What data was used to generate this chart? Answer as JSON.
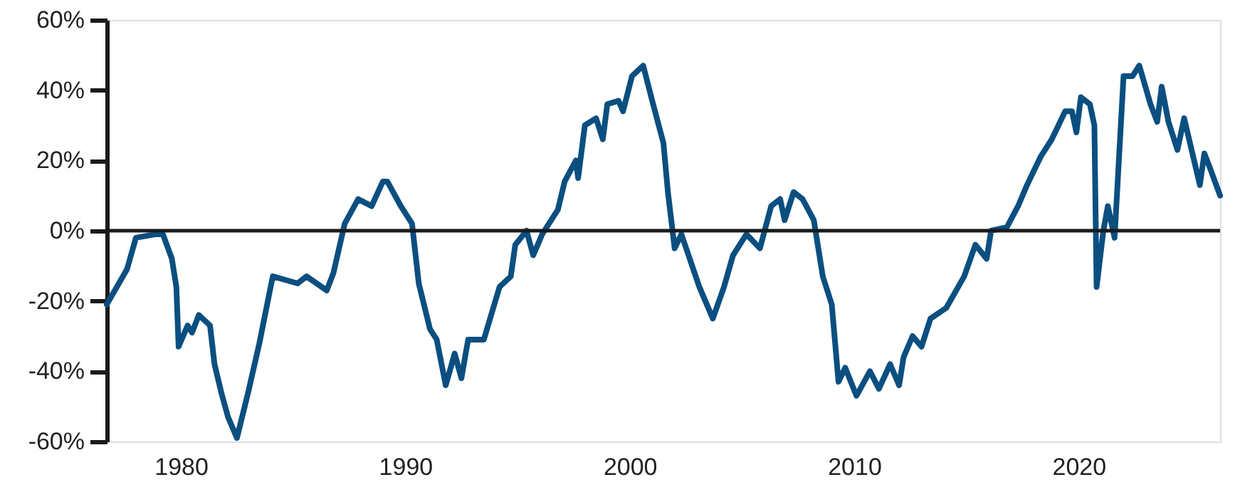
{
  "chart_data": {
    "type": "line",
    "x": [
      1976.7,
      1977.6,
      1978.0,
      1978.9,
      1979.2,
      1979.6,
      1979.8,
      1979.9,
      1980.3,
      1980.5,
      1980.8,
      1981.3,
      1981.5,
      1981.8,
      1982.1,
      1982.5,
      1983.0,
      1983.5,
      1984.0,
      1984.1,
      1985.2,
      1985.6,
      1986.5,
      1986.8,
      1987.3,
      1987.9,
      1988.5,
      1989.0,
      1989.2,
      1989.8,
      1990.3,
      1990.6,
      1991.1,
      1991.4,
      1991.8,
      1992.2,
      1992.5,
      1992.8,
      1993.5,
      1994.2,
      1994.7,
      1994.9,
      1995.4,
      1995.7,
      1996.1,
      1996.8,
      1997.1,
      1997.6,
      1997.7,
      1998.0,
      1998.5,
      1998.8,
      1999.0,
      1999.5,
      1999.7,
      2000.1,
      2000.6,
      2001.0,
      2001.5,
      2001.7,
      2002.0,
      2002.3,
      2003.1,
      2003.7,
      2004.2,
      2004.6,
      2005.2,
      2005.8,
      2006.3,
      2006.7,
      2006.9,
      2007.3,
      2007.7,
      2008.2,
      2008.6,
      2009.0,
      2009.3,
      2009.6,
      2010.1,
      2010.7,
      2011.1,
      2011.6,
      2012.0,
      2012.2,
      2012.6,
      2013.0,
      2013.4,
      2014.1,
      2014.9,
      2015.4,
      2015.9,
      2016.1,
      2016.8,
      2017.3,
      2017.7,
      2018.3,
      2018.8,
      2019.4,
      2019.7,
      2019.9,
      2020.1,
      2020.5,
      2020.7,
      2020.8,
      2021.1,
      2021.3,
      2021.6,
      2022.0,
      2022.4,
      2022.7,
      2023.2,
      2023.5,
      2023.7,
      2024.0,
      2024.4,
      2024.7,
      2025.4,
      2025.6,
      2025.9,
      2026.3
    ],
    "series": [
      {
        "color": "#0b4f80",
        "values": [
          -21,
          -11,
          -2,
          -1,
          -1,
          -8,
          -16,
          -33,
          -27,
          -29,
          -24,
          -27,
          -38,
          -46,
          -53,
          -59,
          -46,
          -32,
          -16,
          -13,
          -15,
          -13,
          -17,
          -12,
          2,
          9,
          7,
          14,
          14,
          7,
          2,
          -15,
          -28,
          -31,
          -44,
          -35,
          -42,
          -31,
          -31,
          -16,
          -13,
          -4,
          0,
          -7,
          -1,
          6,
          14,
          20,
          15,
          30,
          32,
          26,
          36,
          37,
          34,
          44,
          47,
          37,
          25,
          11,
          -5,
          -1,
          -16,
          -25,
          -16,
          -7,
          -1,
          -5,
          7,
          9,
          3,
          11,
          9,
          3,
          -13,
          -21,
          -43,
          -39,
          -47,
          -40,
          -45,
          -38,
          -44,
          -36,
          -30,
          -33,
          -25,
          -22,
          -13,
          -4,
          -8,
          0,
          1,
          7,
          13,
          21,
          26,
          34,
          34,
          28,
          38,
          36,
          30,
          -16,
          0,
          7,
          -2,
          44,
          44,
          47,
          36,
          31,
          41,
          31,
          23,
          32,
          13,
          22,
          17,
          10
        ]
      }
    ],
    "xlim": [
      1976.7,
      2026.3
    ],
    "ylim": [
      -60,
      60
    ],
    "xticks": [
      1980,
      1990,
      2000,
      2010,
      2020
    ],
    "yticks": [
      {
        "value": -60,
        "label": "-60%"
      },
      {
        "value": -40,
        "label": "-40%"
      },
      {
        "value": -20,
        "label": "-20%"
      },
      {
        "value": 0,
        "label": "0%"
      },
      {
        "value": 20,
        "label": "20%"
      },
      {
        "value": 40,
        "label": "40%"
      },
      {
        "value": 60,
        "label": "60%"
      }
    ],
    "ref_lines": [
      {
        "axis": "y",
        "value": 0,
        "color": "#1a1a1a"
      }
    ],
    "grid": false,
    "marker": "none",
    "line_style": "solid"
  }
}
